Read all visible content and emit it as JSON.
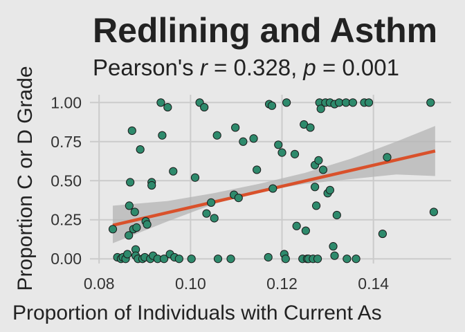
{
  "chart_data": {
    "type": "scatter",
    "title": "Redlining and Asthm",
    "subtitle": {
      "prefix": "Pearson's ",
      "r_symbol": "r",
      "r_value": " = 0.328, ",
      "p_symbol": "p",
      "p_value": " = 0.001"
    },
    "xlabel": "Proportion of Individuals with Current As",
    "ylabel": "Proportion C or D Grade",
    "xlim": [
      0.078,
      0.157
    ],
    "ylim": [
      -0.03,
      1.05
    ],
    "x_ticks": [
      "0.08",
      "0.10",
      "0.12",
      "0.14"
    ],
    "x_tick_values": [
      0.08,
      0.1,
      0.12,
      0.14
    ],
    "y_ticks": [
      "0.00",
      "0.25",
      "0.50",
      "0.75",
      "1.00"
    ],
    "y_tick_values": [
      0,
      0.25,
      0.5,
      0.75,
      1.0
    ],
    "grid": true,
    "points": [
      {
        "x": 0.083,
        "y": 0.19
      },
      {
        "x": 0.084,
        "y": 0.01
      },
      {
        "x": 0.0848,
        "y": 0.0
      },
      {
        "x": 0.0852,
        "y": 0.01
      },
      {
        "x": 0.0858,
        "y": 0.0
      },
      {
        "x": 0.0862,
        "y": 0.03
      },
      {
        "x": 0.0865,
        "y": 0.15
      },
      {
        "x": 0.0866,
        "y": 0.34
      },
      {
        "x": 0.0868,
        "y": 0.49
      },
      {
        "x": 0.0872,
        "y": 0.82
      },
      {
        "x": 0.0875,
        "y": 0.19
      },
      {
        "x": 0.0878,
        "y": 0.3
      },
      {
        "x": 0.088,
        "y": 0.06
      },
      {
        "x": 0.088,
        "y": 0.02
      },
      {
        "x": 0.0882,
        "y": 0.2
      },
      {
        "x": 0.0885,
        "y": 0.0
      },
      {
        "x": 0.089,
        "y": 0.7
      },
      {
        "x": 0.0895,
        "y": 0.0
      },
      {
        "x": 0.09,
        "y": 0.01
      },
      {
        "x": 0.0902,
        "y": 0.24
      },
      {
        "x": 0.0905,
        "y": 0.22
      },
      {
        "x": 0.0912,
        "y": 0.0
      },
      {
        "x": 0.0915,
        "y": 0.49
      },
      {
        "x": 0.0915,
        "y": 0.47
      },
      {
        "x": 0.0918,
        "y": 0.02
      },
      {
        "x": 0.0928,
        "y": 0.0
      },
      {
        "x": 0.0935,
        "y": 1.0
      },
      {
        "x": 0.0938,
        "y": 0.79
      },
      {
        "x": 0.0942,
        "y": 0.0
      },
      {
        "x": 0.095,
        "y": 0.97
      },
      {
        "x": 0.0955,
        "y": 0.03
      },
      {
        "x": 0.0962,
        "y": 0.56
      },
      {
        "x": 0.0965,
        "y": 0.01
      },
      {
        "x": 0.0975,
        "y": 0.0
      },
      {
        "x": 0.1002,
        "y": 0.0
      },
      {
        "x": 0.101,
        "y": 0.52
      },
      {
        "x": 0.102,
        "y": 1.0
      },
      {
        "x": 0.103,
        "y": 0.97
      },
      {
        "x": 0.1035,
        "y": 0.29
      },
      {
        "x": 0.1045,
        "y": 0.36
      },
      {
        "x": 0.1052,
        "y": 0.26
      },
      {
        "x": 0.1058,
        "y": 0.79
      },
      {
        "x": 0.106,
        "y": 0.0
      },
      {
        "x": 0.1088,
        "y": 0.0
      },
      {
        "x": 0.1095,
        "y": 0.41
      },
      {
        "x": 0.1098,
        "y": 0.84
      },
      {
        "x": 0.1105,
        "y": 0.39
      },
      {
        "x": 0.1115,
        "y": 0.75
      },
      {
        "x": 0.1138,
        "y": 0.77
      },
      {
        "x": 0.1145,
        "y": 0.57
      },
      {
        "x": 0.117,
        "y": 0.01
      },
      {
        "x": 0.1172,
        "y": 0.99
      },
      {
        "x": 0.1178,
        "y": 0.98
      },
      {
        "x": 0.118,
        "y": 0.45
      },
      {
        "x": 0.1192,
        "y": 0.73
      },
      {
        "x": 0.12,
        "y": 0.68
      },
      {
        "x": 0.1205,
        "y": 0.03
      },
      {
        "x": 0.1208,
        "y": 0.0
      },
      {
        "x": 0.121,
        "y": 1.0
      },
      {
        "x": 0.1228,
        "y": 0.67
      },
      {
        "x": 0.1232,
        "y": 0.21
      },
      {
        "x": 0.1245,
        "y": 0.0
      },
      {
        "x": 0.1248,
        "y": 0.86
      },
      {
        "x": 0.1252,
        "y": 0.18
      },
      {
        "x": 0.1255,
        "y": 0.0
      },
      {
        "x": 0.1258,
        "y": 0.0
      },
      {
        "x": 0.1262,
        "y": 0.84
      },
      {
        "x": 0.1268,
        "y": 0.0
      },
      {
        "x": 0.1272,
        "y": 0.6
      },
      {
        "x": 0.1272,
        "y": 0.46
      },
      {
        "x": 0.1275,
        "y": 0.34
      },
      {
        "x": 0.1278,
        "y": 0.0
      },
      {
        "x": 0.128,
        "y": 0.63
      },
      {
        "x": 0.1282,
        "y": 1.0
      },
      {
        "x": 0.1285,
        "y": 0.96
      },
      {
        "x": 0.129,
        "y": 0.57
      },
      {
        "x": 0.1295,
        "y": 1.0
      },
      {
        "x": 0.13,
        "y": 0.42
      },
      {
        "x": 0.1305,
        "y": 0.44
      },
      {
        "x": 0.1305,
        "y": 1.0
      },
      {
        "x": 0.1312,
        "y": 0.08
      },
      {
        "x": 0.1315,
        "y": 0.99
      },
      {
        "x": 0.1315,
        "y": 0.02
      },
      {
        "x": 0.132,
        "y": 0.28
      },
      {
        "x": 0.1325,
        "y": 1.0
      },
      {
        "x": 0.134,
        "y": 1.0
      },
      {
        "x": 0.1342,
        "y": 0.0
      },
      {
        "x": 0.1355,
        "y": 1.0
      },
      {
        "x": 0.1362,
        "y": 0.0
      },
      {
        "x": 0.138,
        "y": 1.0
      },
      {
        "x": 0.139,
        "y": 1.0
      },
      {
        "x": 0.142,
        "y": 0.16
      },
      {
        "x": 0.143,
        "y": 0.65
      },
      {
        "x": 0.1525,
        "y": 1.0
      },
      {
        "x": 0.1532,
        "y": 0.3
      }
    ],
    "trend_line": {
      "x": [
        0.083,
        0.1535
      ],
      "y": [
        0.215,
        0.69
      ]
    },
    "confidence_band": {
      "x": [
        0.083,
        0.095,
        0.105,
        0.115,
        0.125,
        0.135,
        0.145,
        0.1535
      ],
      "lower": [
        0.1,
        0.24,
        0.35,
        0.43,
        0.48,
        0.51,
        0.54,
        0.53
      ],
      "upper": [
        0.34,
        0.37,
        0.42,
        0.48,
        0.55,
        0.64,
        0.75,
        0.85
      ]
    },
    "colors": {
      "background": "#e8e8e8",
      "gridline": "#cbcbcb",
      "point_fill": "#2e8a6c",
      "point_stroke": "#1a1a1a",
      "trend_line": "#d9512b",
      "confidence_band": "#b4b4b4"
    }
  }
}
